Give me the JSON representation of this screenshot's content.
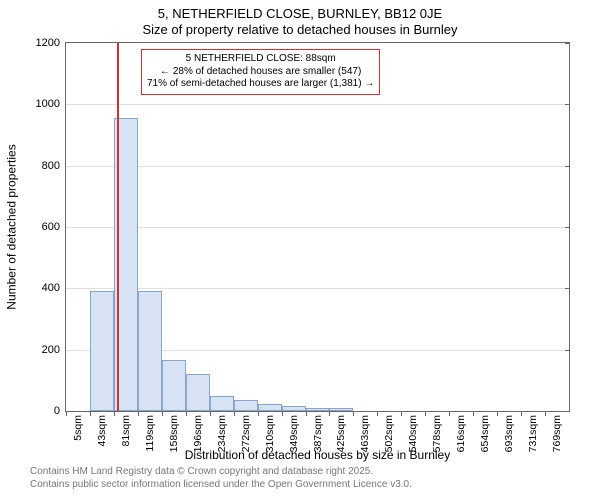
{
  "title": "5, NETHERFIELD CLOSE, BURNLEY, BB12 0JE",
  "subtitle": "Size of property relative to detached houses in Burnley",
  "ylabel": "Number of detached properties",
  "xlabel": "Distribution of detached houses by size in Burnley",
  "footer_line1": "Contains HM Land Registry data © Crown copyright and database right 2025.",
  "footer_line2": "Contains public sector information licensed under the Open Government Licence v3.0.",
  "chart": {
    "type": "histogram",
    "ylim": [
      0,
      1200
    ],
    "yticks": [
      0,
      200,
      400,
      600,
      800,
      1000,
      1200
    ],
    "x_categories": [
      "5sqm",
      "43sqm",
      "81sqm",
      "119sqm",
      "158sqm",
      "196sqm",
      "234sqm",
      "272sqm",
      "310sqm",
      "349sqm",
      "387sqm",
      "425sqm",
      "463sqm",
      "502sqm",
      "540sqm",
      "578sqm",
      "616sqm",
      "654sqm",
      "693sqm",
      "731sqm",
      "769sqm"
    ],
    "values": [
      0,
      390,
      955,
      390,
      165,
      120,
      50,
      35,
      22,
      15,
      10,
      10,
      0,
      0,
      0,
      0,
      0,
      0,
      0,
      0,
      0
    ],
    "bar_fill": "#d7e3f4",
    "bar_border": "#8aa5c9",
    "grid_color": "#e0e0e0",
    "text_color": "#000000",
    "background": "#ffffff",
    "marker_x_sqm": 88,
    "marker_color": "#cc3333",
    "annotation": {
      "line1": "5 NETHERFIELD CLOSE: 88sqm",
      "line2": "← 28% of detached houses are smaller (547)",
      "line3": "71% of semi-detached houses are larger (1,381) →"
    },
    "x_min_sqm": 5,
    "x_max_sqm": 807,
    "title_fontsize": 13,
    "label_fontsize": 12,
    "tick_fontsize": 11
  }
}
